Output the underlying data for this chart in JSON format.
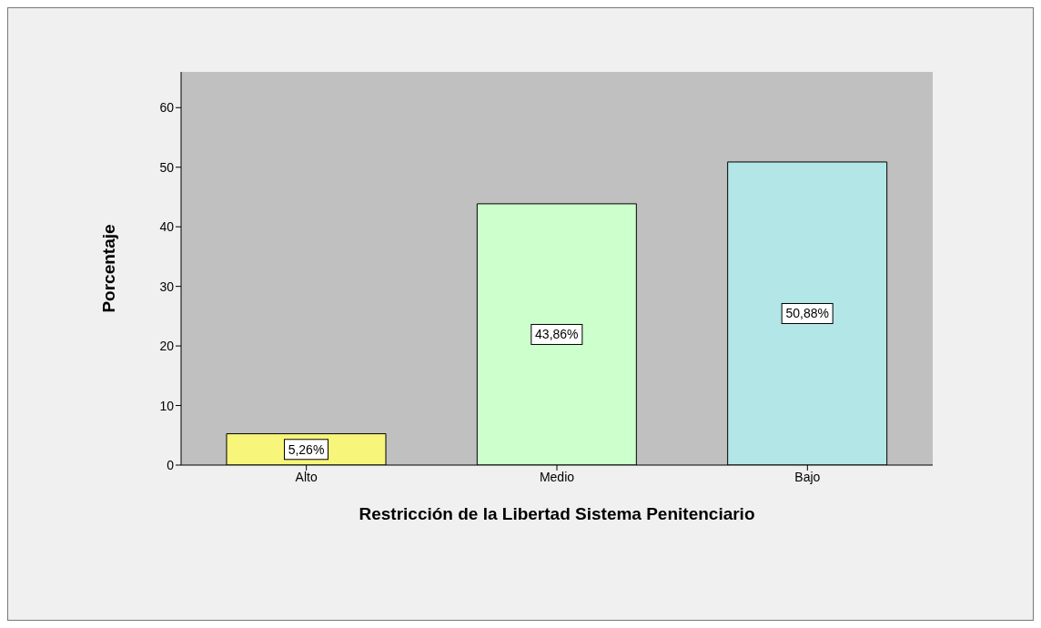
{
  "chart_data": {
    "type": "bar",
    "xlabel": "Restricción de la Libertad Sistema Penitenciario",
    "ylabel": "Porcentaje",
    "categories": [
      "Alto",
      "Medio",
      "Bajo"
    ],
    "values": [
      5.26,
      43.86,
      50.88
    ],
    "value_labels": [
      "5,26%",
      "43,86%",
      "50,88%"
    ],
    "colors": [
      "#f7f57a",
      "#ccffcc",
      "#b3e6e6"
    ],
    "ylim": [
      0,
      66
    ],
    "yticks": [
      0,
      10,
      20,
      30,
      40,
      50,
      60
    ],
    "grid": false
  }
}
